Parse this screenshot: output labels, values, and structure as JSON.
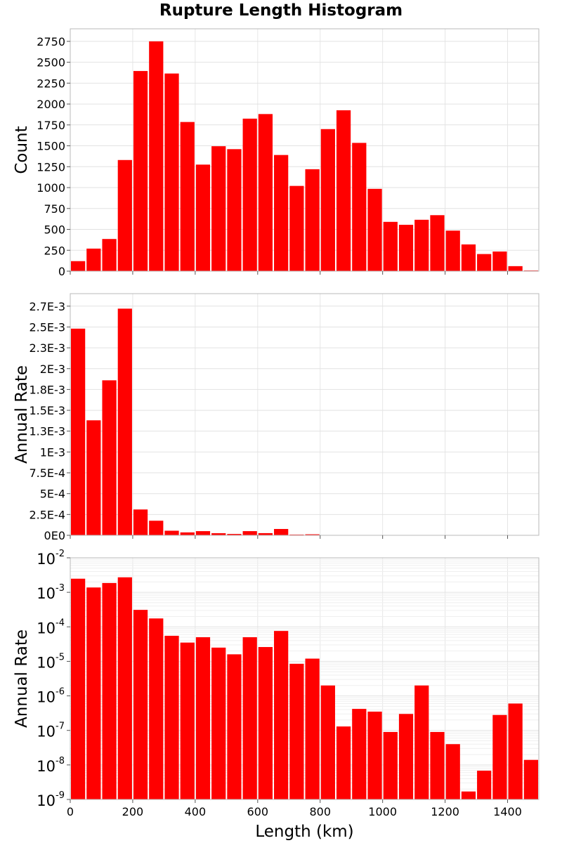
{
  "chart_data": {
    "type": "bar",
    "title": "Rupture Length Histogram",
    "xlabel": "Length (km)",
    "xlim": [
      0,
      1500
    ],
    "x_ticks": [
      "0",
      "200",
      "400",
      "600",
      "800",
      "1000",
      "1200",
      "1400"
    ],
    "bin_width": 50,
    "bar_color": "#ff0000",
    "grid": true,
    "panels": [
      {
        "ylabel": "Count",
        "scale": "linear",
        "ylim": [
          0,
          2900
        ],
        "y_ticks": [
          {
            "value": 0,
            "label": "0"
          },
          {
            "value": 250,
            "label": "250"
          },
          {
            "value": 500,
            "label": "500"
          },
          {
            "value": 750,
            "label": "750"
          },
          {
            "value": 1000,
            "label": "1000"
          },
          {
            "value": 1250,
            "label": "1250"
          },
          {
            "value": 1500,
            "label": "1500"
          },
          {
            "value": 1750,
            "label": "1750"
          },
          {
            "value": 2000,
            "label": "2000"
          },
          {
            "value": 2250,
            "label": "2250"
          },
          {
            "value": 2500,
            "label": "2500"
          },
          {
            "value": 2750,
            "label": "2750"
          }
        ],
        "x": [
          25,
          75,
          125,
          175,
          225,
          275,
          325,
          375,
          425,
          475,
          525,
          575,
          625,
          675,
          725,
          775,
          825,
          875,
          925,
          975,
          1025,
          1075,
          1125,
          1175,
          1225,
          1275,
          1325,
          1375,
          1425,
          1475
        ],
        "values": [
          120,
          270,
          385,
          1330,
          2395,
          2750,
          2365,
          1785,
          1275,
          1495,
          1460,
          1825,
          1880,
          1390,
          1020,
          1220,
          1700,
          1925,
          1535,
          985,
          590,
          555,
          615,
          670,
          485,
          320,
          205,
          235,
          60,
          8
        ]
      },
      {
        "ylabel": "Annual Rate",
        "scale": "linear",
        "ylim": [
          0,
          0.0029
        ],
        "y_ticks": [
          {
            "value": 0,
            "label": "0E0"
          },
          {
            "value": 0.00025,
            "label": "2.5E-4"
          },
          {
            "value": 0.0005,
            "label": "5E-4"
          },
          {
            "value": 0.00075,
            "label": "7.5E-4"
          },
          {
            "value": 0.001,
            "label": "1E-3"
          },
          {
            "value": 0.00125,
            "label": "1.3E-3"
          },
          {
            "value": 0.0015,
            "label": "1.5E-3"
          },
          {
            "value": 0.00175,
            "label": "1.8E-3"
          },
          {
            "value": 0.002,
            "label": "2E-3"
          },
          {
            "value": 0.00225,
            "label": "2.3E-3"
          },
          {
            "value": 0.0025,
            "label": "2.5E-3"
          },
          {
            "value": 0.00275,
            "label": "2.7E-3"
          }
        ],
        "x": [
          25,
          75,
          125,
          175,
          225,
          275,
          325,
          375,
          425,
          475,
          525,
          575,
          625,
          675,
          725,
          775,
          825,
          875,
          925,
          975,
          1025,
          1075,
          1125,
          1175,
          1225,
          1275,
          1325,
          1375,
          1425,
          1475
        ],
        "values": [
          0.00248,
          0.00138,
          0.00186,
          0.00272,
          0.00031,
          0.000175,
          5.5e-05,
          3.5e-05,
          5e-05,
          2.5e-05,
          1.6e-05,
          5e-05,
          2.6e-05,
          7.6e-05,
          8.5e-06,
          1.2e-05,
          2e-06,
          1.3e-07,
          4.2e-07,
          3.5e-07,
          9e-08,
          3e-07,
          2e-06,
          9e-08,
          4e-08,
          1.7e-09,
          6.8e-09,
          2.8e-07,
          6e-07,
          1.4e-08
        ]
      },
      {
        "ylabel": "Annual Rate",
        "scale": "log",
        "ylim": [
          1e-09,
          0.01
        ],
        "y_ticks": [
          {
            "value": 1e-09,
            "base": "10",
            "exp": "-9"
          },
          {
            "value": 1e-08,
            "base": "10",
            "exp": "-8"
          },
          {
            "value": 1e-07,
            "base": "10",
            "exp": "-7"
          },
          {
            "value": 1e-06,
            "base": "10",
            "exp": "-6"
          },
          {
            "value": 1e-05,
            "base": "10",
            "exp": "-5"
          },
          {
            "value": 0.0001,
            "base": "10",
            "exp": "-4"
          },
          {
            "value": 0.001,
            "base": "10",
            "exp": "-3"
          },
          {
            "value": 0.01,
            "base": "10",
            "exp": "-2"
          }
        ],
        "x": [
          25,
          75,
          125,
          175,
          225,
          275,
          325,
          375,
          425,
          475,
          525,
          575,
          625,
          675,
          725,
          775,
          825,
          875,
          925,
          975,
          1025,
          1075,
          1125,
          1175,
          1225,
          1275,
          1325,
          1375,
          1425,
          1475
        ],
        "values": [
          0.00248,
          0.00138,
          0.00186,
          0.00272,
          0.00031,
          0.000175,
          5.5e-05,
          3.5e-05,
          5e-05,
          2.5e-05,
          1.6e-05,
          5e-05,
          2.6e-05,
          7.6e-05,
          8.5e-06,
          1.2e-05,
          2e-06,
          1.3e-07,
          4.2e-07,
          3.5e-07,
          9e-08,
          3e-07,
          2e-06,
          9e-08,
          4e-08,
          1.7e-09,
          6.8e-09,
          2.8e-07,
          6e-07,
          1.4e-08
        ]
      }
    ]
  }
}
